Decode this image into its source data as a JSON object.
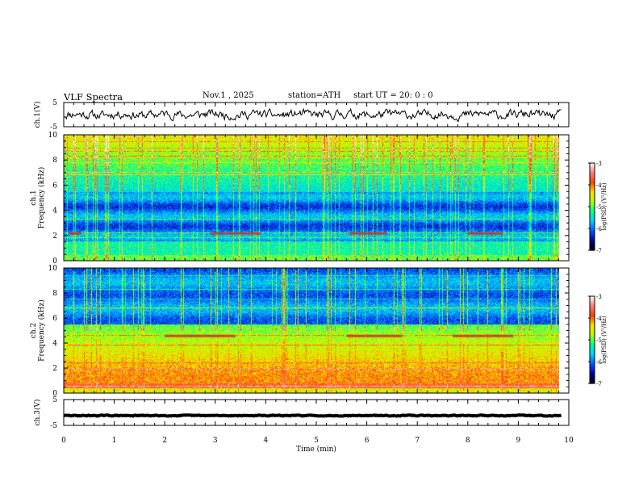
{
  "header": {
    "title": "VLF  Spectra",
    "date": "Nov.1  , 2025",
    "station": "station=ATH",
    "start": "start  UT  =    20: 0   : 0"
  },
  "chart_data": [
    {
      "type": "line",
      "name": "ch1-waveform",
      "ylabel": "ch.1(V)",
      "ylim": [
        -5,
        5
      ],
      "yticks": [
        "5",
        "-5"
      ],
      "xlim": [
        0,
        9.85
      ],
      "seed": 11,
      "amplitude": 0.55
    },
    {
      "type": "heatmap",
      "name": "ch1-spectrogram",
      "ylabel": "ch.1\nFrequency  (kHz)",
      "ylim": [
        0,
        10
      ],
      "yticks": [
        "10",
        "8",
        "6",
        "4",
        "2",
        "0"
      ],
      "colorbar": {
        "label": "log(PSD) (V²/Hz)",
        "range": [
          -7,
          -3
        ],
        "ticks": [
          "-3",
          "-4",
          "-5",
          "-6",
          "-7"
        ]
      },
      "bursts": [
        {
          "t_start": 0.1,
          "t_end": 0.35,
          "freq_khz": 2.2
        },
        {
          "t_start": 2.9,
          "t_end": 3.9,
          "freq_khz": 2.2
        },
        {
          "t_start": 5.65,
          "t_end": 6.4,
          "freq_khz": 2.2
        },
        {
          "t_start": 8.0,
          "t_end": 8.7,
          "freq_khz": 2.2
        }
      ]
    },
    {
      "type": "heatmap",
      "name": "ch2-spectrogram",
      "ylabel": "ch.2\nFrequency  (kHz)",
      "ylim": [
        0,
        10
      ],
      "yticks": [
        "10",
        "8",
        "6",
        "4",
        "2",
        "0"
      ],
      "colorbar": {
        "label": "log(PSD) (V²/Hz)",
        "range": [
          -7,
          -3
        ],
        "ticks": [
          "-3",
          "-4",
          "-5",
          "-6",
          "-7"
        ]
      },
      "bursts": [
        {
          "t_start": 2.0,
          "t_end": 3.4,
          "freq_khz": 4.6
        },
        {
          "t_start": 5.6,
          "t_end": 6.7,
          "freq_khz": 4.6
        },
        {
          "t_start": 7.7,
          "t_end": 8.9,
          "freq_khz": 4.6
        }
      ]
    },
    {
      "type": "line",
      "name": "ch3-waveform",
      "ylabel": "ch.3(V)",
      "ylim": [
        -5,
        5
      ],
      "yticks": [
        "5",
        "-5"
      ],
      "xlim": [
        0,
        9.85
      ],
      "seed": 29,
      "amplitude": 0.05,
      "level": -1.2
    }
  ],
  "x_axis": {
    "label": "Time  (min)",
    "xlim": [
      0,
      10
    ],
    "ticks": [
      "0",
      "1",
      "2",
      "3",
      "4",
      "5",
      "6",
      "7",
      "8",
      "9",
      "10"
    ]
  },
  "colormap": [
    "#000000",
    "#0000a0",
    "#0055ff",
    "#00d0ff",
    "#00ff90",
    "#b0ff00",
    "#ffe000",
    "#ff4000",
    "#ff8080",
    "#ffffff"
  ]
}
